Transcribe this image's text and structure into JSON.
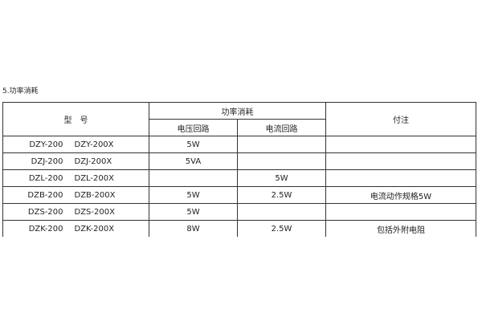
{
  "title": "5.功率消耗",
  "header": {
    "model": "型　号",
    "power": "功率消耗",
    "voltage": "电压回路",
    "current": "电流回路",
    "note": "付注"
  },
  "rows": [
    {
      "model_a": "DZY-200",
      "model_b": "DZY-200X",
      "voltage": "5W",
      "current": "",
      "note": ""
    },
    {
      "model_a": "DZJ-200",
      "model_b": "DZJ-200X",
      "voltage": "5VA",
      "current": "",
      "note": ""
    },
    {
      "model_a": "DZL-200",
      "model_b": "DZL-200X",
      "voltage": "",
      "current": "5W",
      "note": ""
    },
    {
      "model_a": "DZB-200",
      "model_b": "DZB-200X",
      "voltage": "5W",
      "current": "2.5W",
      "note": "电流动作规格5W"
    },
    {
      "model_a": "DZS-200",
      "model_b": "DZS-200X",
      "voltage": "5W",
      "current": "",
      "note": ""
    },
    {
      "model_a": "DZK-200",
      "model_b": "DZK-200X",
      "voltage": "8W",
      "current": "2.5W",
      "note": "包括外附电阻"
    }
  ]
}
